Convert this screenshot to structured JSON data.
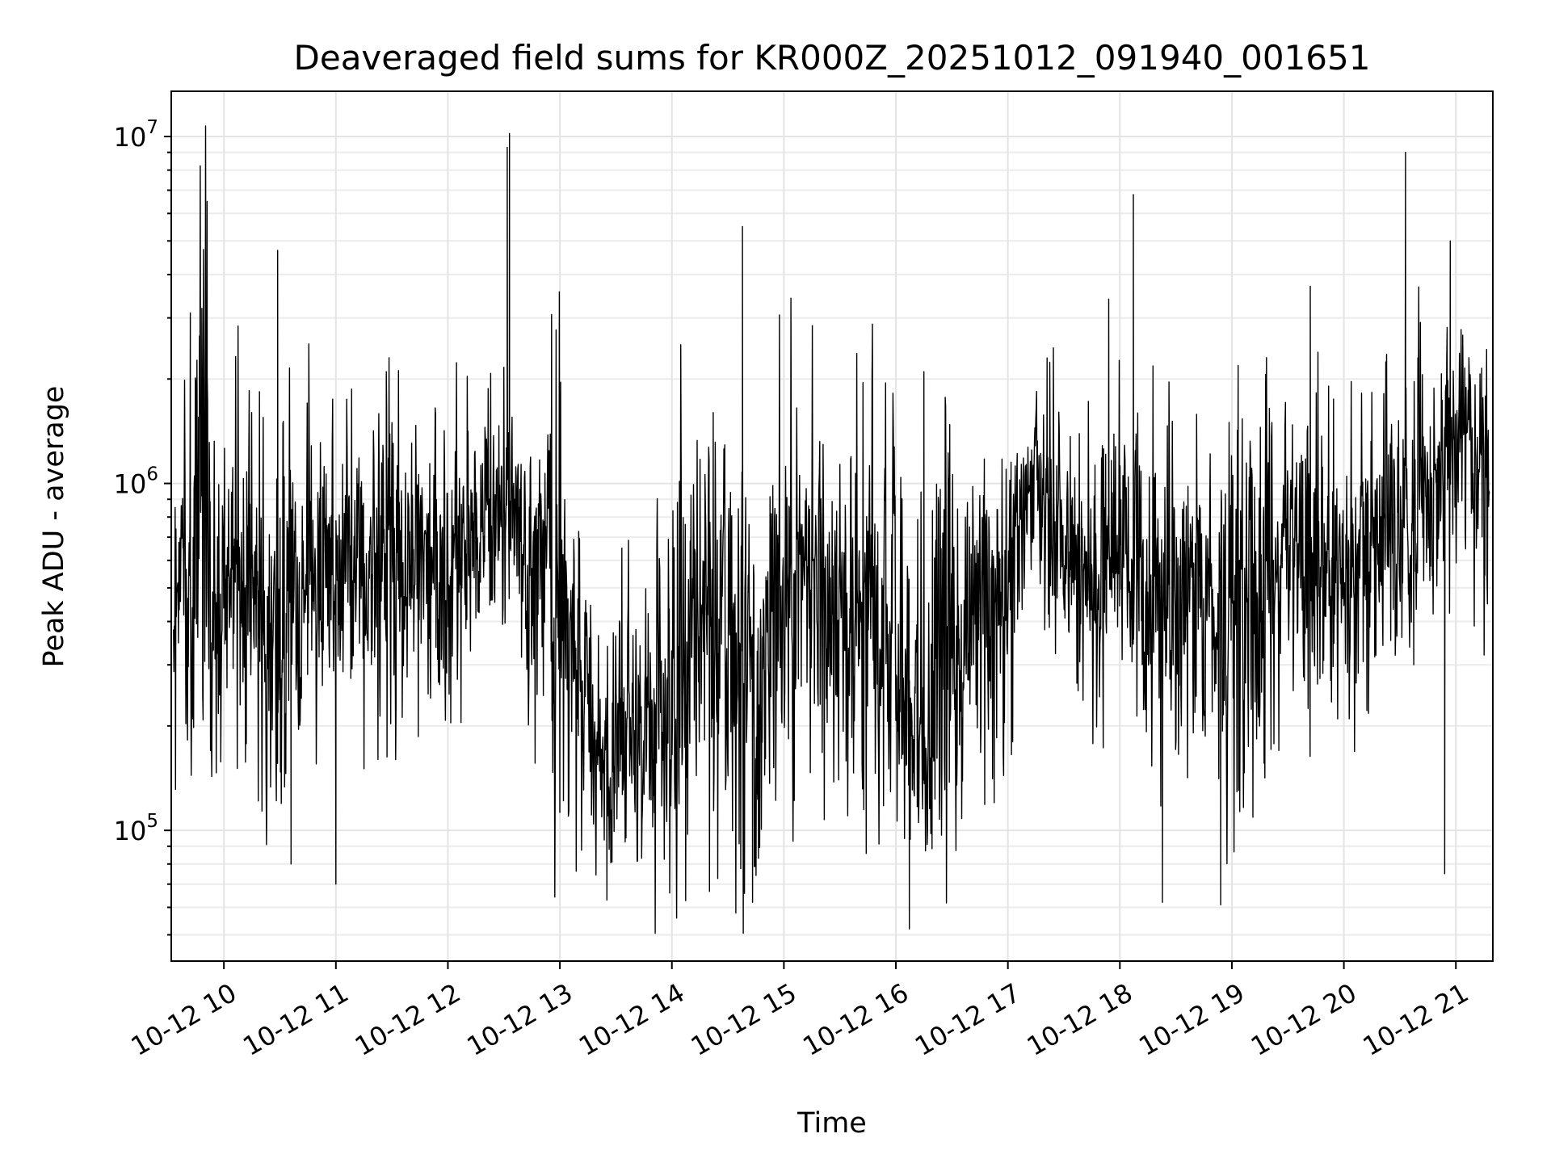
{
  "chart_data": {
    "type": "line",
    "title": "Deaveraged field sums for KR000Z_20251012_091940_001651",
    "xlabel": "Time",
    "ylabel": "Peak ADU - average",
    "yscale": "log",
    "ylim": [
      42000,
      13500000
    ],
    "xlim_hours": [
      9.53,
      21.33
    ],
    "grid": true,
    "legend": "none",
    "x_ticks": [
      {
        "value": 10,
        "label": "10-12 10"
      },
      {
        "value": 11,
        "label": "10-12 11"
      },
      {
        "value": 12,
        "label": "10-12 12"
      },
      {
        "value": 13,
        "label": "10-12 13"
      },
      {
        "value": 14,
        "label": "10-12 14"
      },
      {
        "value": 15,
        "label": "10-12 15"
      },
      {
        "value": 16,
        "label": "10-12 16"
      },
      {
        "value": 17,
        "label": "10-12 17"
      },
      {
        "value": 18,
        "label": "10-12 18"
      },
      {
        "value": 19,
        "label": "10-12 19"
      },
      {
        "value": 20,
        "label": "10-12 20"
      },
      {
        "value": 21,
        "label": "10-12 21"
      }
    ],
    "y_ticks": [
      {
        "value": 100000,
        "base": "10",
        "exp": "5"
      },
      {
        "value": 1000000,
        "base": "10",
        "exp": "6"
      },
      {
        "value": 10000000,
        "base": "10",
        "exp": "7"
      }
    ],
    "series": [
      {
        "name": "Peak ADU - average",
        "color": "#000000",
        "hours": [
          9.55,
          9.8,
          10.0,
          10.25,
          10.5,
          10.75,
          11.0,
          11.25,
          11.5,
          11.75,
          12.0,
          12.25,
          12.5,
          12.6,
          12.75,
          13.0,
          13.25,
          13.5,
          13.75,
          14.0,
          14.25,
          14.5,
          14.75,
          15.0,
          15.25,
          15.5,
          15.75,
          16.0,
          16.25,
          16.5,
          16.75,
          17.0,
          17.25,
          17.5,
          17.75,
          18.0,
          18.25,
          18.5,
          18.75,
          19.0,
          19.25,
          19.5,
          19.75,
          20.0,
          20.25,
          20.5,
          20.75,
          21.0,
          21.3
        ],
        "typical": [
          450000,
          600000,
          400000,
          550000,
          350000,
          500000,
          550000,
          600000,
          550000,
          600000,
          550000,
          650000,
          900000,
          900000,
          700000,
          550000,
          200000,
          180000,
          200000,
          220000,
          350000,
          350000,
          300000,
          550000,
          500000,
          550000,
          450000,
          350000,
          200000,
          300000,
          550000,
          550000,
          1000000,
          750000,
          600000,
          750000,
          500000,
          450000,
          450000,
          400000,
          450000,
          700000,
          600000,
          550000,
          750000,
          850000,
          1000000,
          1400000,
          900000
        ],
        "upper": [
          1000000,
          3000000,
          1100000,
          1500000,
          1100000,
          1500000,
          1400000,
          1300000,
          1300000,
          1300000,
          1200000,
          1500000,
          1800000,
          1700000,
          1500000,
          1200000,
          500000,
          500000,
          500000,
          900000,
          1100000,
          1200000,
          1100000,
          1300000,
          1300000,
          1200000,
          1300000,
          1200000,
          1100000,
          1100000,
          1100000,
          1200000,
          1700000,
          1400000,
          1500000,
          1700000,
          1300000,
          1000000,
          1100000,
          1200000,
          1300000,
          1500000,
          1400000,
          1400000,
          1500000,
          2000000,
          2300000,
          2500000,
          1800000
        ],
        "lower": [
          200000,
          150000,
          150000,
          160000,
          120000,
          160000,
          180000,
          200000,
          200000,
          220000,
          200000,
          280000,
          450000,
          450000,
          250000,
          110000,
          100000,
          90000,
          95000,
          100000,
          110000,
          110000,
          85000,
          120000,
          130000,
          150000,
          120000,
          100000,
          75000,
          100000,
          150000,
          150000,
          400000,
          300000,
          280000,
          350000,
          200000,
          150000,
          130000,
          130000,
          150000,
          300000,
          200000,
          200000,
          300000,
          400000,
          450000,
          600000,
          300000
        ],
        "spikes": [
          {
            "hour": 9.85,
            "value": 6500000
          },
          {
            "hour": 9.7,
            "value": 3100000
          },
          {
            "hour": 10.48,
            "value": 4700000
          },
          {
            "hour": 10.6,
            "value": 80000
          },
          {
            "hour": 11.0,
            "value": 70000
          },
          {
            "hour": 11.45,
            "value": 2100000
          },
          {
            "hour": 12.55,
            "value": 10200000
          },
          {
            "hour": 12.53,
            "value": 9300000
          },
          {
            "hour": 13.42,
            "value": 63000
          },
          {
            "hour": 13.98,
            "value": 66000
          },
          {
            "hour": 14.63,
            "value": 5500000
          },
          {
            "hour": 14.72,
            "value": 62000
          },
          {
            "hour": 16.12,
            "value": 52000
          },
          {
            "hour": 16.25,
            "value": 2100000
          },
          {
            "hour": 17.35,
            "value": 2300000
          },
          {
            "hour": 17.9,
            "value": 3400000
          },
          {
            "hour": 18.12,
            "value": 6800000
          },
          {
            "hour": 18.38,
            "value": 62000
          },
          {
            "hour": 18.9,
            "value": 61000
          },
          {
            "hour": 19.7,
            "value": 3700000
          },
          {
            "hour": 20.55,
            "value": 9000000
          },
          {
            "hour": 20.95,
            "value": 5000000
          },
          {
            "hour": 20.9,
            "value": 75000
          }
        ]
      }
    ]
  }
}
